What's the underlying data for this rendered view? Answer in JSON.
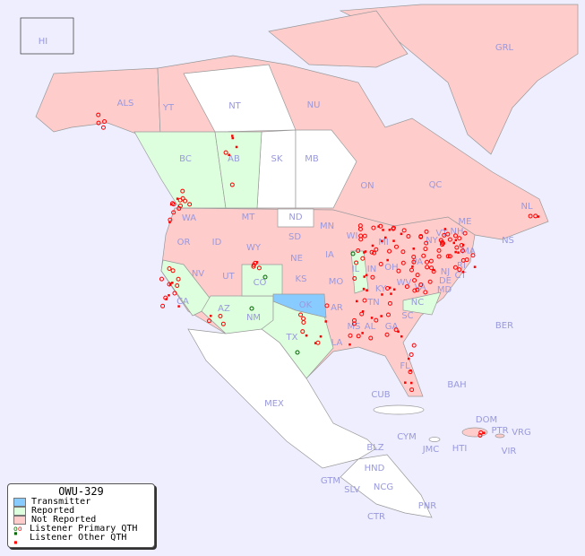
{
  "title": "OWU-329",
  "legend": {
    "items": [
      {
        "label": "Transmitter",
        "color": "#88ccff"
      },
      {
        "label": "Reported",
        "color": "#ddffdd"
      },
      {
        "label": "Not Reported",
        "color": "#ffcccc"
      },
      {
        "label": "Listener Primary QTH",
        "colors": [
          "#006600",
          "#ff0000"
        ]
      },
      {
        "label": "Listener Other QTH",
        "colors": [
          "#006600",
          "#ff0000"
        ]
      }
    ]
  },
  "colors": {
    "background": "#eeeeff",
    "unlisted": "#ffffff",
    "transmitter": "#88ccff",
    "reported": "#ddffdd",
    "not_reported": "#ffcccc",
    "spot": "#ff0000",
    "spot_reported": "#006600"
  },
  "regions": [
    "HI",
    "ALS",
    "YT",
    "NT",
    "NU",
    "GRL",
    "BC",
    "AB",
    "SK",
    "MB",
    "ON",
    "QC",
    "NL",
    "NS",
    "WA",
    "MT",
    "ND",
    "MN",
    "OR",
    "ID",
    "WY",
    "SD",
    "WI",
    "MI",
    "NV",
    "UT",
    "CO",
    "NE",
    "IA",
    "IL",
    "IN",
    "OH",
    "PA",
    "NY",
    "VT",
    "NH",
    "ME",
    "MA",
    "RI",
    "CT",
    "NJ",
    "DE",
    "MD",
    "CA",
    "AZ",
    "NM",
    "KS",
    "MO",
    "KY",
    "WV",
    "VA",
    "OK",
    "AR",
    "TN",
    "NC",
    "SC",
    "TX",
    "LA",
    "MS",
    "AL",
    "GA",
    "FL",
    "MEX",
    "CUB",
    "BAH",
    "DOM",
    "PTR",
    "VRG",
    "CYM",
    "JMC",
    "HTI",
    "VIR",
    "BLZ",
    "HND",
    "GTM",
    "SLV",
    "NCG",
    "CTR",
    "BER",
    "PNR"
  ]
}
